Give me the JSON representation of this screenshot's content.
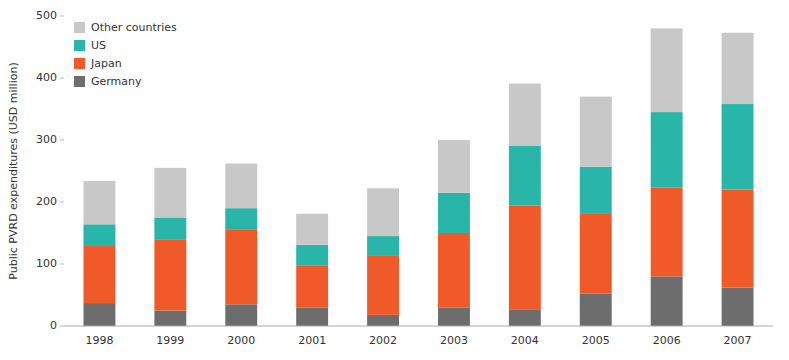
{
  "chart_data": {
    "type": "bar",
    "stacked": true,
    "categories": [
      "1998",
      "1999",
      "2000",
      "2001",
      "2002",
      "2003",
      "2004",
      "2005",
      "2006",
      "2007"
    ],
    "series": [
      {
        "name": "Germany",
        "color": "#6d6d6d",
        "values": [
          37,
          25,
          35,
          30,
          18,
          30,
          27,
          52,
          80,
          62
        ]
      },
      {
        "name": "Japan",
        "color": "#f05a28",
        "values": [
          92,
          115,
          120,
          68,
          95,
          120,
          167,
          130,
          143,
          158
        ]
      },
      {
        "name": "US",
        "color": "#29b5a8",
        "values": [
          35,
          35,
          35,
          33,
          32,
          65,
          97,
          75,
          122,
          138
        ]
      },
      {
        "name": "Other countries",
        "color": "#c8c8c8",
        "values": [
          70,
          80,
          72,
          50,
          77,
          85,
          100,
          113,
          135,
          115
        ]
      }
    ],
    "ylabel": "Public PVRD expenditures (USD million)",
    "ylim": [
      0,
      500
    ],
    "yticks": [
      0,
      100,
      200,
      300,
      400,
      500
    ],
    "grid": false,
    "legend": "upper left"
  }
}
